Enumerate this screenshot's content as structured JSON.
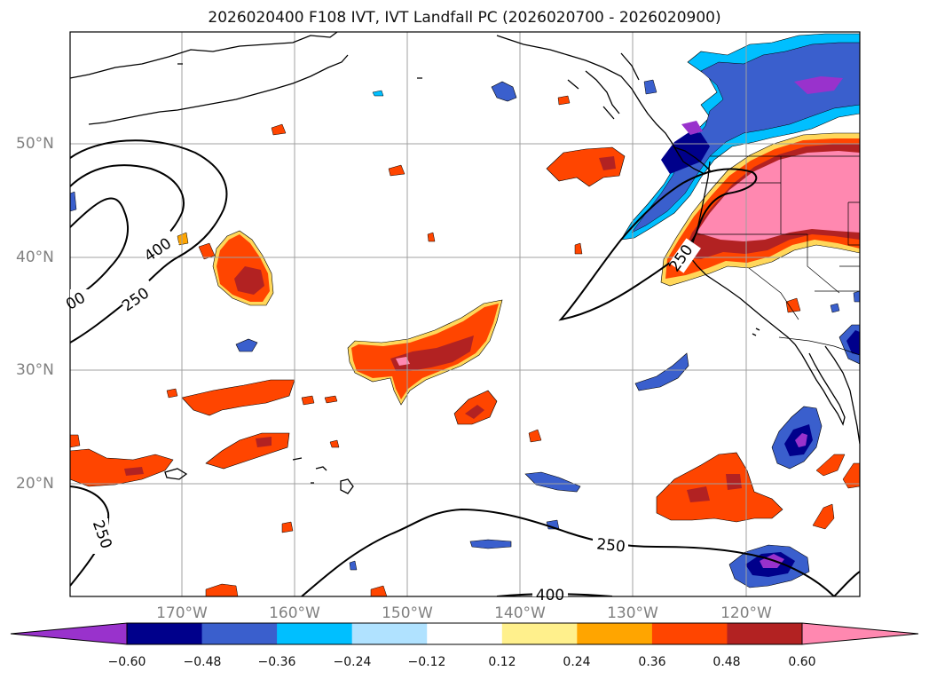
{
  "title": "2026020400 F108 IVT, IVT Landfall PC (2026020700 - 2026020900)",
  "map": {
    "lat_labels": [
      "50°N",
      "40°N",
      "30°N",
      "20°N"
    ],
    "lon_labels": [
      "170°W",
      "160°W",
      "150°W",
      "140°W",
      "130°W",
      "120°W"
    ],
    "contour_labels": [
      "400",
      "250",
      "00",
      "250",
      "250",
      "250",
      "400"
    ],
    "colors": {
      "coastline": "#000000",
      "gridline": "#a0a0a0",
      "contour": "#000000"
    }
  },
  "colorbar": {
    "tick_labels": [
      "−0.60",
      "−0.48",
      "−0.36",
      "−0.24",
      "−0.12",
      "0.12",
      "0.24",
      "0.36",
      "0.48",
      "0.60"
    ],
    "colors": [
      "#9932cc",
      "#00008b",
      "#3a5fcd",
      "#00bfff",
      "#b0e2ff",
      "#ffffff",
      "#fff08c",
      "#ffa500",
      "#ff4500",
      "#b22222",
      "#ff88b0"
    ]
  }
}
